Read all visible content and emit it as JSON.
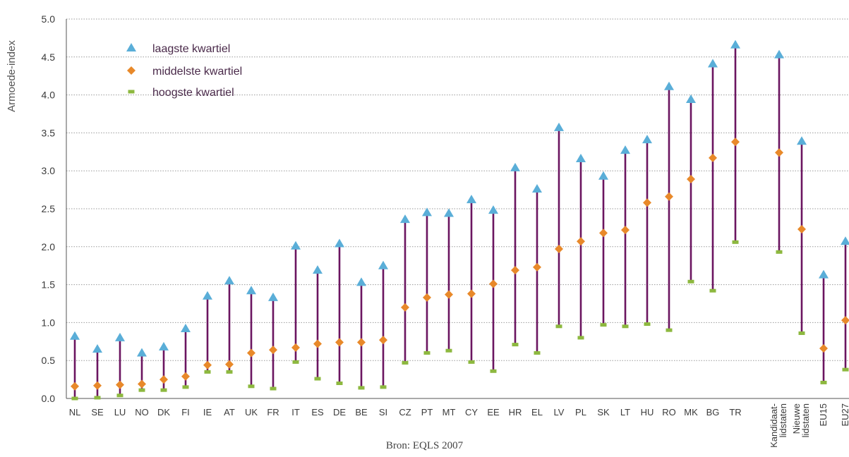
{
  "chart_data": {
    "type": "range-dot",
    "ylabel": "Armoede-index",
    "ylim": [
      0,
      5.0
    ],
    "yticks": [
      "0.0",
      "0.5",
      "1.0",
      "1.5",
      "2.0",
      "2.5",
      "3.0",
      "3.5",
      "4.0",
      "4.5",
      "5.0"
    ],
    "grid": true,
    "legend_position": "top-left",
    "categories": [
      "NL",
      "SE",
      "LU",
      "NO",
      "DK",
      "FI",
      "IE",
      "AT",
      "UK",
      "FR",
      "IT",
      "ES",
      "DE",
      "BE",
      "SI",
      "CZ",
      "PT",
      "MT",
      "CY",
      "EE",
      "HR",
      "EL",
      "LV",
      "PL",
      "SK",
      "LT",
      "HU",
      "RO",
      "MK",
      "BG",
      "TR",
      "Kandidaat-\nlidstaten",
      "Nieuwe\nlidstaten",
      "EU15",
      "EU27"
    ],
    "series": [
      {
        "name": "laagste kwartiel",
        "marker": "triangle",
        "color": "#5aaed8",
        "values": [
          0.82,
          0.65,
          0.8,
          0.6,
          0.68,
          0.92,
          1.35,
          1.55,
          1.42,
          1.33,
          2.01,
          1.69,
          2.04,
          1.53,
          1.75,
          2.36,
          2.45,
          2.44,
          2.62,
          2.48,
          3.04,
          2.76,
          3.57,
          3.16,
          2.93,
          3.27,
          3.41,
          4.11,
          3.94,
          4.41,
          4.66,
          4.53,
          3.39,
          1.63,
          2.07
        ]
      },
      {
        "name": "middelste kwartiel",
        "marker": "diamond",
        "color": "#e8892a",
        "values": [
          0.16,
          0.17,
          0.18,
          0.19,
          0.25,
          0.29,
          0.44,
          0.45,
          0.6,
          0.64,
          0.67,
          0.72,
          0.74,
          0.74,
          0.77,
          1.2,
          1.33,
          1.37,
          1.38,
          1.51,
          1.69,
          1.73,
          1.97,
          2.07,
          2.18,
          2.22,
          2.58,
          2.66,
          2.89,
          3.17,
          3.38,
          3.24,
          2.23,
          0.66,
          1.03
        ]
      },
      {
        "name": "hoogste kwartiel",
        "marker": "dash",
        "color": "#8db83f",
        "values": [
          0.0,
          0.01,
          0.04,
          0.11,
          0.11,
          0.15,
          0.35,
          0.35,
          0.16,
          0.13,
          0.48,
          0.26,
          0.2,
          0.14,
          0.15,
          0.47,
          0.6,
          0.63,
          0.48,
          0.36,
          0.71,
          0.6,
          0.95,
          0.8,
          0.97,
          0.95,
          0.98,
          0.9,
          1.54,
          1.42,
          2.06,
          1.93,
          0.86,
          0.21,
          0.38
        ]
      }
    ],
    "range_line_color": "#6b1560",
    "source": "Bron: EQLS 2007"
  }
}
